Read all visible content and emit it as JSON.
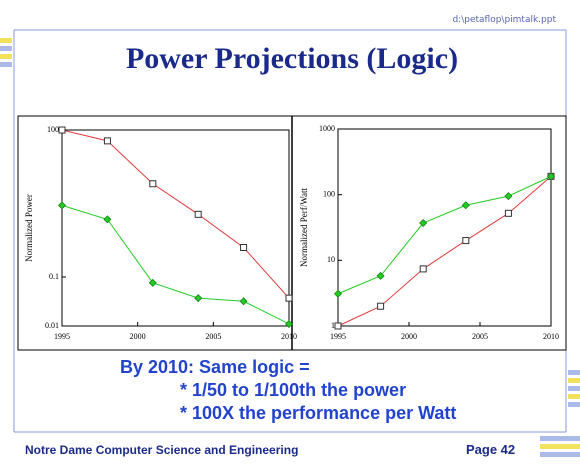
{
  "header": {
    "file": "d:\\petaflop\\pimtalk.ppt",
    "title": "Power Projections (Logic)"
  },
  "chart_data": [
    {
      "type": "line",
      "ylabel": "Normalized Power",
      "x": [
        1995,
        1998,
        2001,
        2004,
        2007,
        2010
      ],
      "xlim": [
        1995,
        2010
      ],
      "xticks": [
        1995,
        2000,
        2005,
        2010
      ],
      "ylim": [
        0.01,
        100
      ],
      "yticks": [
        0.01,
        0.1,
        100
      ],
      "log_y": true,
      "series": [
        {
          "color": "#e03a3a",
          "marker": "square",
          "values": [
            100,
            60,
            8,
            1.9,
            0.4,
            0.037
          ]
        },
        {
          "color": "#22cc22",
          "marker": "diamond",
          "values": [
            2.9,
            1.5,
            0.076,
            0.037,
            0.032,
            0.011
          ]
        }
      ]
    },
    {
      "type": "line",
      "ylabel": "Normalized Perf/Watt",
      "x": [
        1995,
        1998,
        2001,
        2004,
        2007,
        2010
      ],
      "xlim": [
        1995,
        2010
      ],
      "xticks": [
        1995,
        2000,
        2005,
        2010
      ],
      "ylim": [
        1,
        1000
      ],
      "yticks": [
        1,
        10,
        100,
        1000
      ],
      "log_y": true,
      "series": [
        {
          "color": "#e03a3a",
          "marker": "square",
          "values": [
            1,
            2,
            7.4,
            20,
            52,
            190
          ]
        },
        {
          "color": "#22cc22",
          "marker": "diamond",
          "values": [
            3.1,
            5.8,
            37,
            69,
            95,
            190
          ]
        }
      ]
    }
  ],
  "body": {
    "lines": [
      "By 2010: Same logic =",
      "* 1/50 to 1/100th the power",
      "* 100X the performance per Watt"
    ]
  },
  "footer": {
    "org": "Notre Dame Computer Science and Engineering",
    "page": "Page 42"
  }
}
